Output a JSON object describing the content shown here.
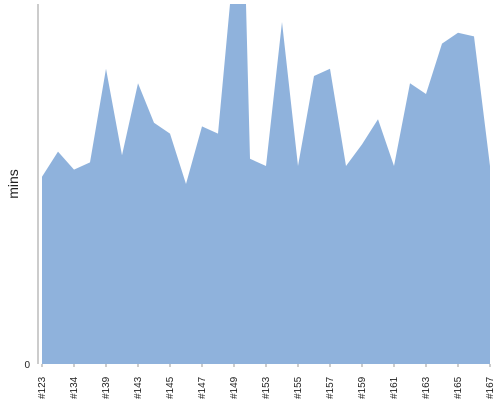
{
  "chart_data": {
    "type": "area",
    "ylabel": "mins",
    "xlabel": "",
    "y_tick_labels": [
      "0"
    ],
    "ylim": [
      0,
      100
    ],
    "grid": false,
    "legend": "none",
    "colors": {
      "area_fill": "#8fb2dc",
      "axis_line": "#999999",
      "text": "#222222"
    },
    "x_tick_labels": [
      "#123",
      "#134",
      "#139",
      "#143",
      "#145",
      "#147",
      "#149",
      "#153",
      "#155",
      "#157",
      "#159",
      "#161",
      "#163",
      "#165",
      "#167"
    ],
    "points": [
      {
        "x": 0.0,
        "y": 52
      },
      {
        "x": 1.0,
        "y": 59
      },
      {
        "x": 2.0,
        "y": 54
      },
      {
        "x": 3.0,
        "y": 56
      },
      {
        "x": 4.0,
        "y": 82
      },
      {
        "x": 5.0,
        "y": 58
      },
      {
        "x": 6.0,
        "y": 78
      },
      {
        "x": 7.0,
        "y": 67
      },
      {
        "x": 8.0,
        "y": 64
      },
      {
        "x": 9.0,
        "y": 50
      },
      {
        "x": 10.0,
        "y": 66
      },
      {
        "x": 11.0,
        "y": 64
      },
      {
        "x": 11.75,
        "y": 100
      },
      {
        "x": 12.75,
        "y": 100
      },
      {
        "x": 13.0,
        "y": 57
      },
      {
        "x": 14.0,
        "y": 55
      },
      {
        "x": 15.0,
        "y": 95
      },
      {
        "x": 16.0,
        "y": 55
      },
      {
        "x": 17.0,
        "y": 80
      },
      {
        "x": 18.0,
        "y": 82
      },
      {
        "x": 19.0,
        "y": 55
      },
      {
        "x": 20.0,
        "y": 61
      },
      {
        "x": 21.0,
        "y": 68
      },
      {
        "x": 22.0,
        "y": 55
      },
      {
        "x": 23.0,
        "y": 78
      },
      {
        "x": 24.0,
        "y": 75
      },
      {
        "x": 25.0,
        "y": 89
      },
      {
        "x": 26.0,
        "y": 92
      },
      {
        "x": 27.0,
        "y": 91
      },
      {
        "x": 28.0,
        "y": 55
      }
    ],
    "xlim": [
      0,
      28
    ]
  }
}
